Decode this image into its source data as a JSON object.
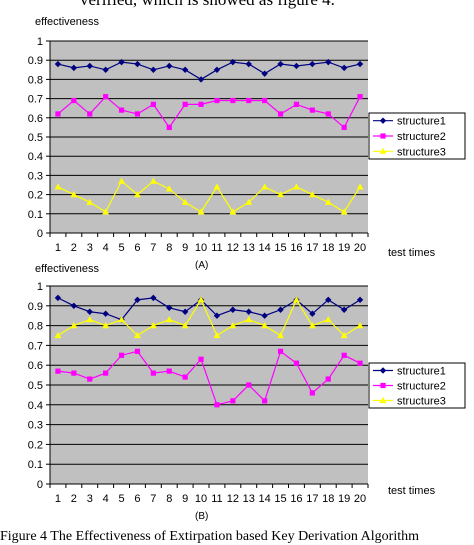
{
  "page": {
    "top_text": "verified, which is showed as figure 4.",
    "caption": "Figure 4 The Effectiveness of Extirpation based Key Derivation Algorithm"
  },
  "chart_data": [
    {
      "type": "line",
      "ylabel": "effectiveness",
      "xlabel": "test times",
      "sublabel": "(A)",
      "ylim": [
        0,
        1
      ],
      "yticks": [
        "0",
        "0.1",
        "0.2",
        "0.3",
        "0.4",
        "0.5",
        "0.6",
        "0.7",
        "0.8",
        "0.9",
        "1"
      ],
      "categories": [
        "1",
        "2",
        "3",
        "4",
        "5",
        "6",
        "7",
        "8",
        "9",
        "10",
        "11",
        "12",
        "13",
        "14",
        "15",
        "16",
        "17",
        "18",
        "19",
        "20"
      ],
      "legend_position": "right",
      "grid": true,
      "series": [
        {
          "name": "structure1",
          "color": "#000080",
          "marker": "diamond",
          "values": [
            0.88,
            0.86,
            0.87,
            0.85,
            0.89,
            0.88,
            0.85,
            0.87,
            0.85,
            0.8,
            0.85,
            0.89,
            0.88,
            0.83,
            0.88,
            0.87,
            0.88,
            0.89,
            0.86,
            0.88
          ]
        },
        {
          "name": "structure2",
          "color": "#ff00ff",
          "marker": "square",
          "values": [
            0.62,
            0.69,
            0.62,
            0.71,
            0.64,
            0.62,
            0.67,
            0.55,
            0.67,
            0.67,
            0.69,
            0.69,
            0.69,
            0.69,
            0.62,
            0.67,
            0.64,
            0.62,
            0.55,
            0.71
          ]
        },
        {
          "name": "structure3",
          "color": "#ffff00",
          "marker": "triangle",
          "values": [
            0.24,
            0.2,
            0.16,
            0.11,
            0.27,
            0.2,
            0.27,
            0.23,
            0.16,
            0.11,
            0.24,
            0.11,
            0.16,
            0.24,
            0.2,
            0.24,
            0.2,
            0.16,
            0.11,
            0.24
          ]
        }
      ]
    },
    {
      "type": "line",
      "ylabel": "effectiveness",
      "xlabel": "test times",
      "sublabel": "(B)",
      "ylim": [
        0,
        1
      ],
      "yticks": [
        "0",
        "0.1",
        "0.2",
        "0.3",
        "0.4",
        "0.5",
        "0.6",
        "0.7",
        "0.8",
        "0.9",
        "1"
      ],
      "categories": [
        "1",
        "2",
        "3",
        "4",
        "5",
        "6",
        "7",
        "8",
        "9",
        "10",
        "11",
        "12",
        "13",
        "14",
        "15",
        "16",
        "17",
        "18",
        "19",
        "20"
      ],
      "legend_position": "right",
      "grid": true,
      "series": [
        {
          "name": "structure1",
          "color": "#000080",
          "marker": "diamond",
          "values": [
            0.94,
            0.9,
            0.87,
            0.86,
            0.83,
            0.93,
            0.94,
            0.89,
            0.87,
            0.93,
            0.85,
            0.88,
            0.87,
            0.85,
            0.88,
            0.93,
            0.86,
            0.93,
            0.88,
            0.93
          ]
        },
        {
          "name": "structure2",
          "color": "#ff00ff",
          "marker": "square",
          "values": [
            0.57,
            0.56,
            0.53,
            0.56,
            0.65,
            0.67,
            0.56,
            0.57,
            0.54,
            0.63,
            0.4,
            0.42,
            0.5,
            0.42,
            0.67,
            0.61,
            0.46,
            0.53,
            0.65,
            0.61
          ]
        },
        {
          "name": "structure3",
          "color": "#ffff00",
          "marker": "triangle",
          "values": [
            0.75,
            0.8,
            0.83,
            0.8,
            0.83,
            0.75,
            0.8,
            0.83,
            0.8,
            0.93,
            0.75,
            0.8,
            0.83,
            0.8,
            0.75,
            0.93,
            0.8,
            0.83,
            0.75,
            0.8
          ]
        }
      ]
    }
  ]
}
